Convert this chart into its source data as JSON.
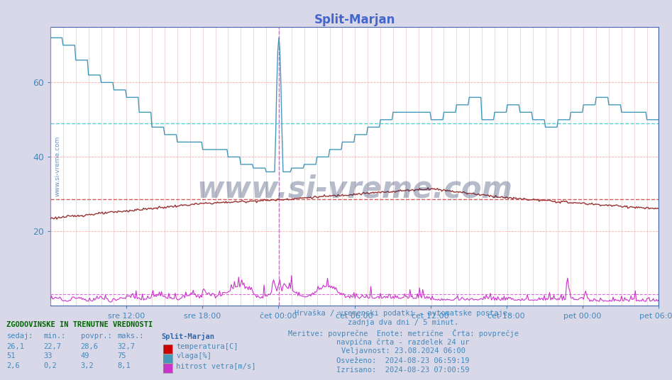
{
  "title": "Split-Marjan",
  "title_color": "#4466cc",
  "bg_color": "#d8d8e8",
  "plot_bg_color": "#ffffff",
  "grid_color_h": "#ffaaaa",
  "grid_color_v": "#ddaaaa",
  "ylim": [
    0,
    75
  ],
  "yticks": [
    20,
    40,
    60
  ],
  "xlabel_color": "#4488bb",
  "ylabel_color": "#4488bb",
  "xtick_labels": [
    "sre 12:00",
    "sre 18:00",
    "čet 00:00",
    "čet 06:00",
    "čet 12:00",
    "čet 18:00",
    "pet 00:00",
    "pet 06:00"
  ],
  "temp_color": "#993333",
  "humidity_color": "#4499bb",
  "wind_color": "#cc33cc",
  "avg_temp_color": "#cc3333",
  "avg_humidity_color": "#44cccc",
  "avg_wind_color": "#cc33cc",
  "vline_color": "#ff44ff",
  "text_info": [
    "Hrvaška / vremenski podatki - avtomatske postaje.",
    "zadnja dva dni / 5 minut.",
    "Meritve: povprečne  Enote: metrične  Črta: povprečje",
    "navpična črta - razdelek 24 ur",
    "Veljavnost: 23.08.2024 06:00",
    "Osveženo:  2024-08-23 06:59:19",
    "Izrisano:  2024-08-23 07:00:59"
  ],
  "legend_title": "ZGODOVINSKE IN TRENUTNE VREDNOSTI",
  "legend_headers": [
    "sedaj:",
    "min.:",
    "povpr.:",
    "maks.:",
    "Split-Marjan"
  ],
  "legend_rows": [
    [
      "26,1",
      "22,7",
      "28,6",
      "32,7",
      "temperatura[C]",
      "#cc0000"
    ],
    [
      "51",
      "33",
      "49",
      "75",
      "vlaga[%]",
      "#4499bb"
    ],
    [
      "2,6",
      "0,2",
      "3,2",
      "8,1",
      "hitrost vetra[m/s]",
      "#cc33cc"
    ]
  ],
  "n_points": 576,
  "avg_temp": 28.6,
  "avg_humidity": 49,
  "avg_wind": 3.2
}
